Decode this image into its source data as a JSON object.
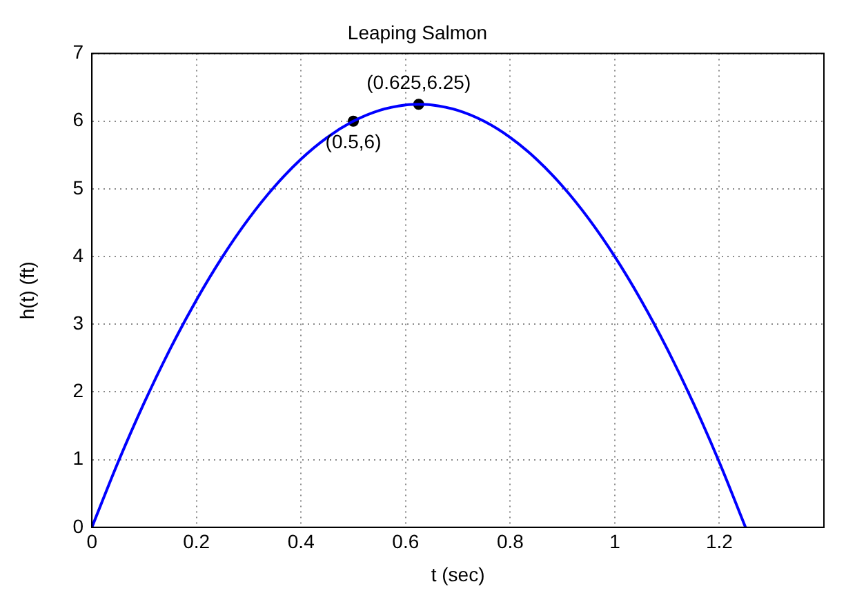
{
  "chart_data": {
    "type": "line",
    "title": "Leaping Salmon",
    "xlabel": "t (sec)",
    "ylabel": "h(t) (ft)",
    "xlim": [
      0,
      1.4
    ],
    "xticks": [
      0,
      0.2,
      0.4,
      0.6,
      0.8,
      1,
      1.2
    ],
    "ylim": [
      0,
      7
    ],
    "yticks": [
      0,
      1,
      2,
      3,
      4,
      5,
      6,
      7
    ],
    "grid": true,
    "legend": false,
    "marker": "none",
    "line_style": "solid",
    "series": [
      {
        "color": "#0000ff",
        "x": [
          0,
          0.05,
          0.1,
          0.15,
          0.2,
          0.25,
          0.3,
          0.35,
          0.4,
          0.45,
          0.5,
          0.55,
          0.6,
          0.625,
          0.65,
          0.7,
          0.75,
          0.8,
          0.85,
          0.9,
          0.95,
          1,
          1.05,
          1.1,
          1.15,
          1.2,
          1.25
        ],
        "values": [
          0,
          0.96,
          1.84,
          2.64,
          3.36,
          4,
          4.56,
          5.04,
          5.44,
          5.76,
          6,
          6.16,
          6.24,
          6.25,
          6.24,
          6.16,
          6,
          5.76,
          5.44,
          5.04,
          4.56,
          4,
          3.36,
          2.64,
          1.84,
          0.96,
          0
        ]
      },
      {
        "type": "scatter",
        "color": "#000000",
        "marker": "circle",
        "x": [
          0.5,
          0.625
        ],
        "values": [
          6,
          6.25
        ]
      }
    ],
    "annotations": [
      {
        "text": "(0.5,6)",
        "x": 0.5,
        "y": 6
      },
      {
        "text": "(0.625,6.25)",
        "x": 0.625,
        "y": 6.25
      }
    ]
  }
}
